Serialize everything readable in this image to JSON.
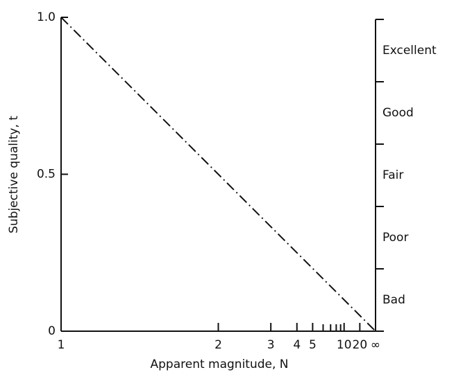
{
  "chart_data": {
    "type": "line",
    "xlabel": "Apparent magnitude, N",
    "ylabel": "Subjective quality, t",
    "x": [
      1,
      0
    ],
    "series": [
      {
        "color": "#111111",
        "values": [
          1,
          0
        ]
      }
    ],
    "xlim": [
      1,
      0
    ],
    "xticks": [
      {
        "value": 1,
        "label": "1"
      },
      {
        "value": 0.5,
        "label": "2"
      },
      {
        "value": 0.333,
        "label": "3"
      },
      {
        "value": 0.25,
        "label": "4"
      },
      {
        "value": 0.2,
        "label": "5"
      },
      {
        "value": 0.1,
        "label": "10"
      },
      {
        "value": 0.05,
        "label": "20"
      },
      {
        "value": 0,
        "label": "∞"
      }
    ],
    "xminorticks": [
      0.1667,
      0.1429,
      0.125,
      0.1111
    ],
    "ylim": [
      0,
      1
    ],
    "yticks": [
      0,
      0.5,
      {
        "value": 1,
        "label": "1.0"
      }
    ],
    "y2_categories": [
      "Bad",
      "Poor",
      "Fair",
      "Good",
      "Excellent"
    ]
  }
}
